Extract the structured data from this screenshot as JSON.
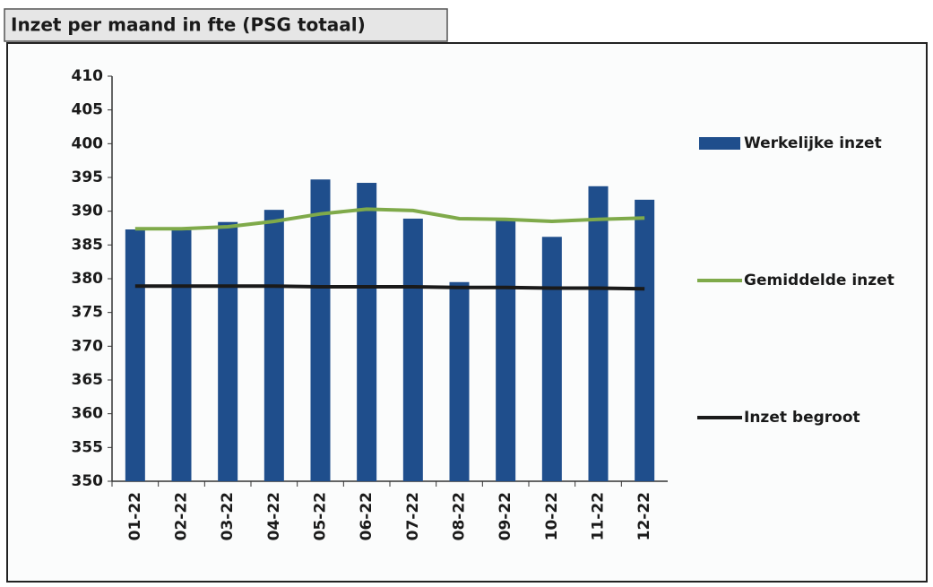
{
  "chart_data": {
    "type": "bar",
    "title": "Inzet per maand in fte (PSG totaal)",
    "categories": [
      "01-22",
      "02-22",
      "03-22",
      "04-22",
      "05-22",
      "06-22",
      "07-22",
      "08-22",
      "09-22",
      "10-22",
      "11-22",
      "12-22"
    ],
    "series": [
      {
        "name": "Werkelijke inzet",
        "type": "bar",
        "color": "#1f4e8c",
        "values": [
          387.3,
          387.2,
          388.4,
          390.2,
          394.7,
          394.2,
          388.9,
          379.5,
          388.9,
          386.2,
          393.7,
          391.7
        ]
      },
      {
        "name": "Gemiddelde inzet",
        "type": "line",
        "color": "#7faa4a",
        "values": [
          387.4,
          387.4,
          387.7,
          388.5,
          389.6,
          390.3,
          390.1,
          388.9,
          388.8,
          388.5,
          388.8,
          389.0
        ]
      },
      {
        "name": "Inzet begroot",
        "type": "line",
        "color": "#1a1a1a",
        "values": [
          378.9,
          378.9,
          378.9,
          378.9,
          378.8,
          378.8,
          378.8,
          378.7,
          378.7,
          378.6,
          378.6,
          378.5
        ]
      }
    ],
    "ylim": [
      350,
      410
    ],
    "yticks": [
      350,
      355,
      360,
      365,
      370,
      375,
      380,
      385,
      390,
      395,
      400,
      405,
      410
    ],
    "legend": "right"
  }
}
